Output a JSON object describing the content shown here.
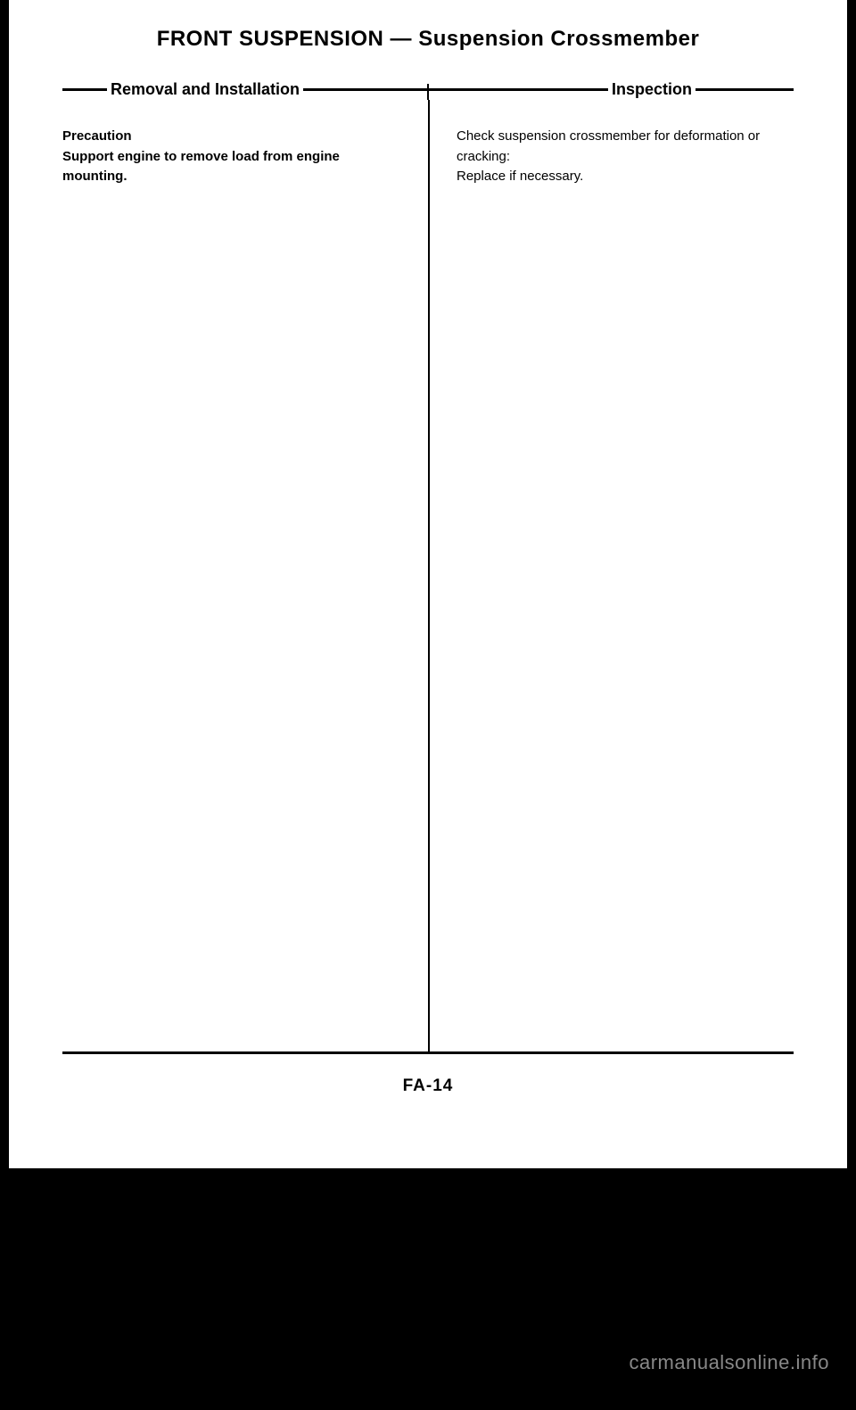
{
  "title": "FRONT SUSPENSION — Suspension Crossmember",
  "sections": {
    "left_header": "Removal and Installation",
    "right_header": "Inspection"
  },
  "left_column": {
    "line1": "Precaution",
    "line2": "Support engine to remove load from engine mounting."
  },
  "right_column": {
    "line1": "Check suspension crossmember for deformation or cracking:",
    "line2": "Replace if necessary."
  },
  "page_number": "FA-14",
  "watermark": "carmanualsonline.info",
  "colors": {
    "background": "#000000",
    "page": "#ffffff",
    "text": "#000000",
    "watermark": "#888888"
  }
}
